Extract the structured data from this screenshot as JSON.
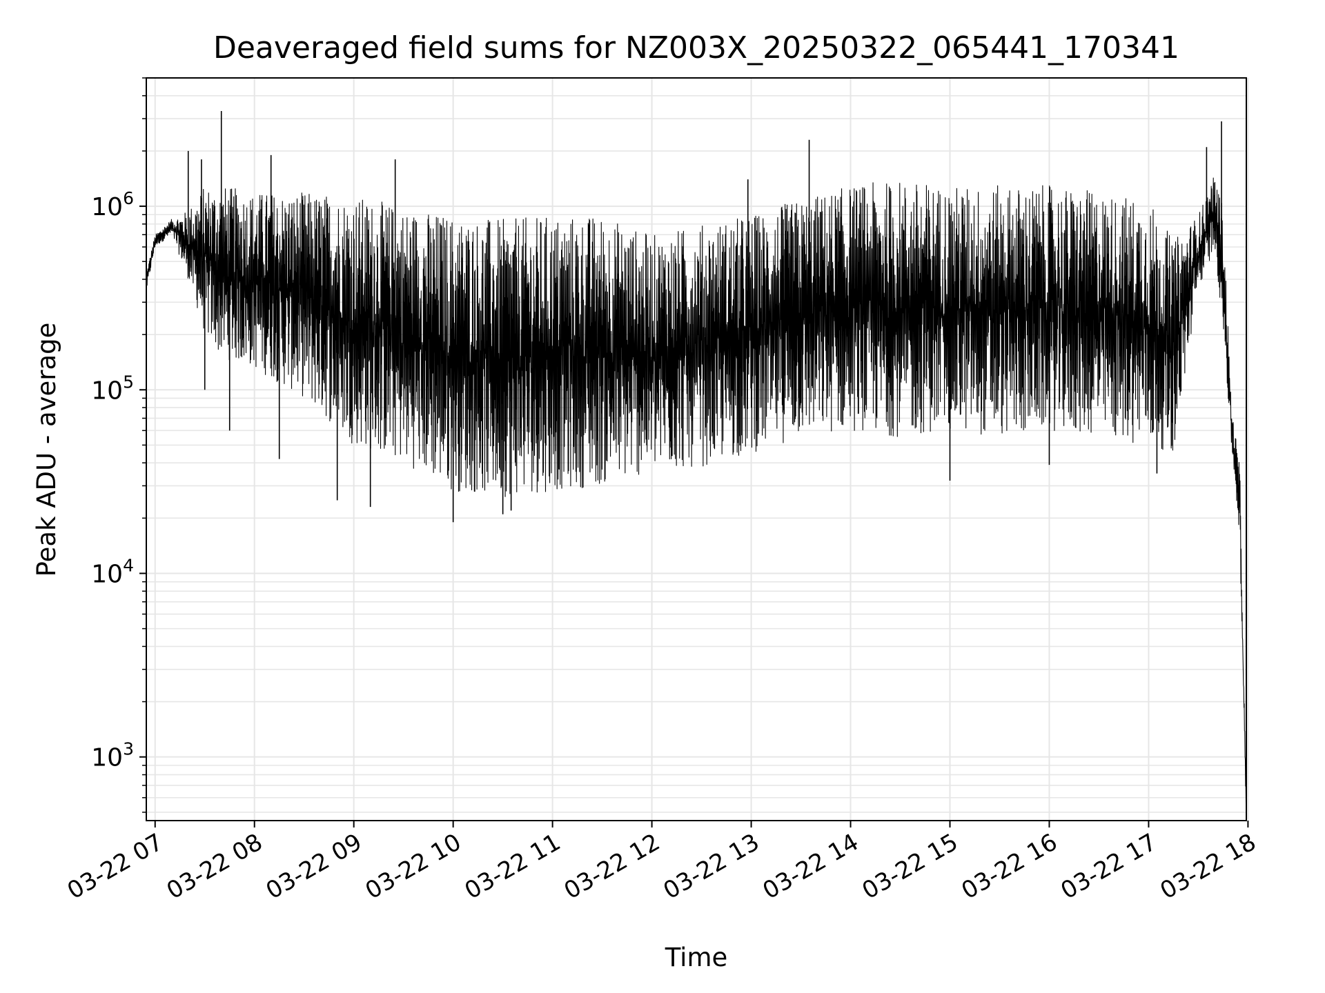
{
  "chart_data": {
    "type": "line",
    "title": "Deaveraged field sums for NZ003X_20250322_065441_170341",
    "xlabel": "Time",
    "ylabel": "Peak ADU - average",
    "xscale": "time",
    "yscale": "log",
    "xlim": [
      "2025-03-22T06:54:41",
      "2025-03-22T17:59:00"
    ],
    "ylim": [
      450,
      5000000
    ],
    "grid": true,
    "legend": "none",
    "line_color": "#000000",
    "grid_color": "#e6e6e6",
    "x_ticks": [
      {
        "value": "2025-03-22T07:00:00",
        "label": "03-22 07"
      },
      {
        "value": "2025-03-22T08:00:00",
        "label": "03-22 08"
      },
      {
        "value": "2025-03-22T09:00:00",
        "label": "03-22 09"
      },
      {
        "value": "2025-03-22T10:00:00",
        "label": "03-22 10"
      },
      {
        "value": "2025-03-22T11:00:00",
        "label": "03-22 11"
      },
      {
        "value": "2025-03-22T12:00:00",
        "label": "03-22 12"
      },
      {
        "value": "2025-03-22T13:00:00",
        "label": "03-22 13"
      },
      {
        "value": "2025-03-22T14:00:00",
        "label": "03-22 14"
      },
      {
        "value": "2025-03-22T15:00:00",
        "label": "03-22 15"
      },
      {
        "value": "2025-03-22T16:00:00",
        "label": "03-22 16"
      },
      {
        "value": "2025-03-22T17:00:00",
        "label": "03-22 17"
      },
      {
        "value": "2025-03-22T18:00:00",
        "label": "03-22 18"
      }
    ],
    "y_ticks": [
      {
        "value": 1000,
        "mantissa": "10",
        "exponent": "3"
      },
      {
        "value": 10000,
        "mantissa": "10",
        "exponent": "4"
      },
      {
        "value": 100000,
        "mantissa": "10",
        "exponent": "5"
      },
      {
        "value": 1000000,
        "mantissa": "10",
        "exponent": "6"
      }
    ],
    "series": [
      {
        "upper_envelope": {
          "x": [
            "2025-03-22T06:55:00",
            "2025-03-22T07:00:00",
            "2025-03-22T07:10:00",
            "2025-03-22T07:20:00",
            "2025-03-22T07:30:00",
            "2025-03-22T07:40:00",
            "2025-03-22T08:00:00",
            "2025-03-22T08:30:00",
            "2025-03-22T09:00:00",
            "2025-03-22T09:30:00",
            "2025-03-22T10:00:00",
            "2025-03-22T10:30:00",
            "2025-03-22T11:00:00",
            "2025-03-22T11:30:00",
            "2025-03-22T12:00:00",
            "2025-03-22T12:30:00",
            "2025-03-22T13:00:00",
            "2025-03-22T13:30:00",
            "2025-03-22T14:00:00",
            "2025-03-22T14:30:00",
            "2025-03-22T15:00:00",
            "2025-03-22T15:30:00",
            "2025-03-22T16:00:00",
            "2025-03-22T16:30:00",
            "2025-03-22T17:00:00",
            "2025-03-22T17:15:00",
            "2025-03-22T17:30:00",
            "2025-03-22T17:40:00",
            "2025-03-22T17:45:00",
            "2025-03-22T17:50:00",
            "2025-03-22T17:55:00",
            "2025-03-22T17:59:00"
          ],
          "y": [
            450000,
            700000,
            850000,
            950000,
            1300000,
            1300000,
            1200000,
            1200000,
            1150000,
            1000000,
            900000,
            850000,
            900000,
            900000,
            700000,
            800000,
            900000,
            1100000,
            1300000,
            1400000,
            1300000,
            1300000,
            1300000,
            1200000,
            1100000,
            650000,
            900000,
            1500000,
            1000000,
            80000,
            40000,
            500
          ]
        },
        "lower_envelope": {
          "x": [
            "2025-03-22T06:55:00",
            "2025-03-22T07:00:00",
            "2025-03-22T07:10:00",
            "2025-03-22T07:20:00",
            "2025-03-22T07:30:00",
            "2025-03-22T07:40:00",
            "2025-03-22T08:00:00",
            "2025-03-22T08:30:00",
            "2025-03-22T09:00:00",
            "2025-03-22T09:30:00",
            "2025-03-22T10:00:00",
            "2025-03-22T10:30:00",
            "2025-03-22T11:00:00",
            "2025-03-22T11:30:00",
            "2025-03-22T12:00:00",
            "2025-03-22T12:30:00",
            "2025-03-22T13:00:00",
            "2025-03-22T13:30:00",
            "2025-03-22T14:00:00",
            "2025-03-22T14:30:00",
            "2025-03-22T15:00:00",
            "2025-03-22T15:30:00",
            "2025-03-22T16:00:00",
            "2025-03-22T16:30:00",
            "2025-03-22T17:00:00",
            "2025-03-22T17:15:00",
            "2025-03-22T17:30:00",
            "2025-03-22T17:40:00",
            "2025-03-22T17:45:00",
            "2025-03-22T17:50:00",
            "2025-03-22T17:55:00",
            "2025-03-22T17:59:00"
          ],
          "y": [
            350000,
            600000,
            700000,
            400000,
            200000,
            150000,
            130000,
            90000,
            50000,
            40000,
            28000,
            26000,
            28000,
            30000,
            35000,
            38000,
            45000,
            55000,
            60000,
            55000,
            60000,
            55000,
            60000,
            55000,
            50000,
            45000,
            350000,
            600000,
            200000,
            50000,
            15000,
            450
          ]
        },
        "spikes": [
          {
            "x": "2025-03-22T07:20:00",
            "y": 2000000
          },
          {
            "x": "2025-03-22T07:28:00",
            "y": 1800000
          },
          {
            "x": "2025-03-22T07:40:00",
            "y": 3300000
          },
          {
            "x": "2025-03-22T08:10:00",
            "y": 1900000
          },
          {
            "x": "2025-03-22T09:25:00",
            "y": 1800000
          },
          {
            "x": "2025-03-22T12:58:00",
            "y": 1400000
          },
          {
            "x": "2025-03-22T13:35:00",
            "y": 2300000
          },
          {
            "x": "2025-03-22T17:35:00",
            "y": 2100000
          },
          {
            "x": "2025-03-22T17:44:00",
            "y": 2900000
          },
          {
            "x": "2025-03-22T07:30:00",
            "y": 100000
          },
          {
            "x": "2025-03-22T07:45:00",
            "y": 60000
          },
          {
            "x": "2025-03-22T08:15:00",
            "y": 42000
          },
          {
            "x": "2025-03-22T08:50:00",
            "y": 25000
          },
          {
            "x": "2025-03-22T09:10:00",
            "y": 23000
          },
          {
            "x": "2025-03-22T10:00:00",
            "y": 19000
          },
          {
            "x": "2025-03-22T10:30:00",
            "y": 21000
          },
          {
            "x": "2025-03-22T10:35:00",
            "y": 22000
          },
          {
            "x": "2025-03-22T15:00:00",
            "y": 32000
          },
          {
            "x": "2025-03-22T16:00:00",
            "y": 39000
          },
          {
            "x": "2025-03-22T17:05:00",
            "y": 35000
          }
        ]
      }
    ]
  }
}
